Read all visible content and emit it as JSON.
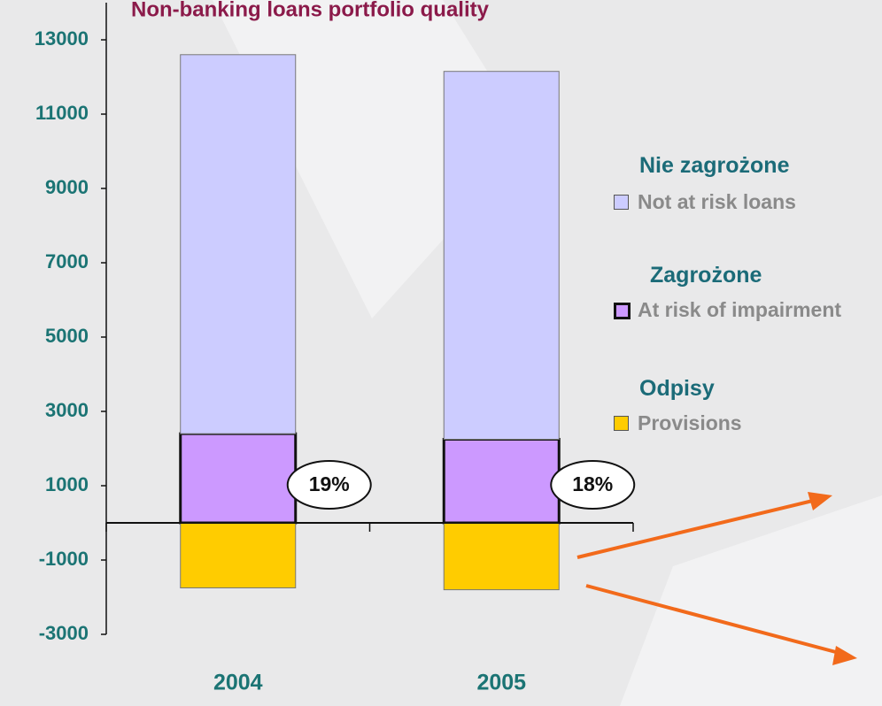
{
  "chart_data": {
    "type": "stacked_bar",
    "title": "Non-banking loans portfolio quality",
    "categories": [
      "2004",
      "2005"
    ],
    "series": [
      {
        "name": "At risk of impairment",
        "name_pl": "Zagrożone",
        "color": "#cc99ff",
        "values": [
          2400,
          2250
        ]
      },
      {
        "name": "Not at risk loans",
        "name_pl": "Nie zagrożone",
        "color": "#ccccff",
        "values": [
          10200,
          9900
        ]
      },
      {
        "name": "Provisions",
        "name_pl": "Odpisy",
        "color": "#ffcc00",
        "values": [
          -1750,
          -1800
        ]
      }
    ],
    "risk_share": {
      "values": [
        19,
        18
      ],
      "value_labels": [
        "19%",
        "18%"
      ]
    },
    "ylim": [
      -3000,
      14000
    ],
    "yticks": [
      -3000,
      -1000,
      1000,
      3000,
      5000,
      7000,
      9000,
      11000,
      13000
    ]
  }
}
